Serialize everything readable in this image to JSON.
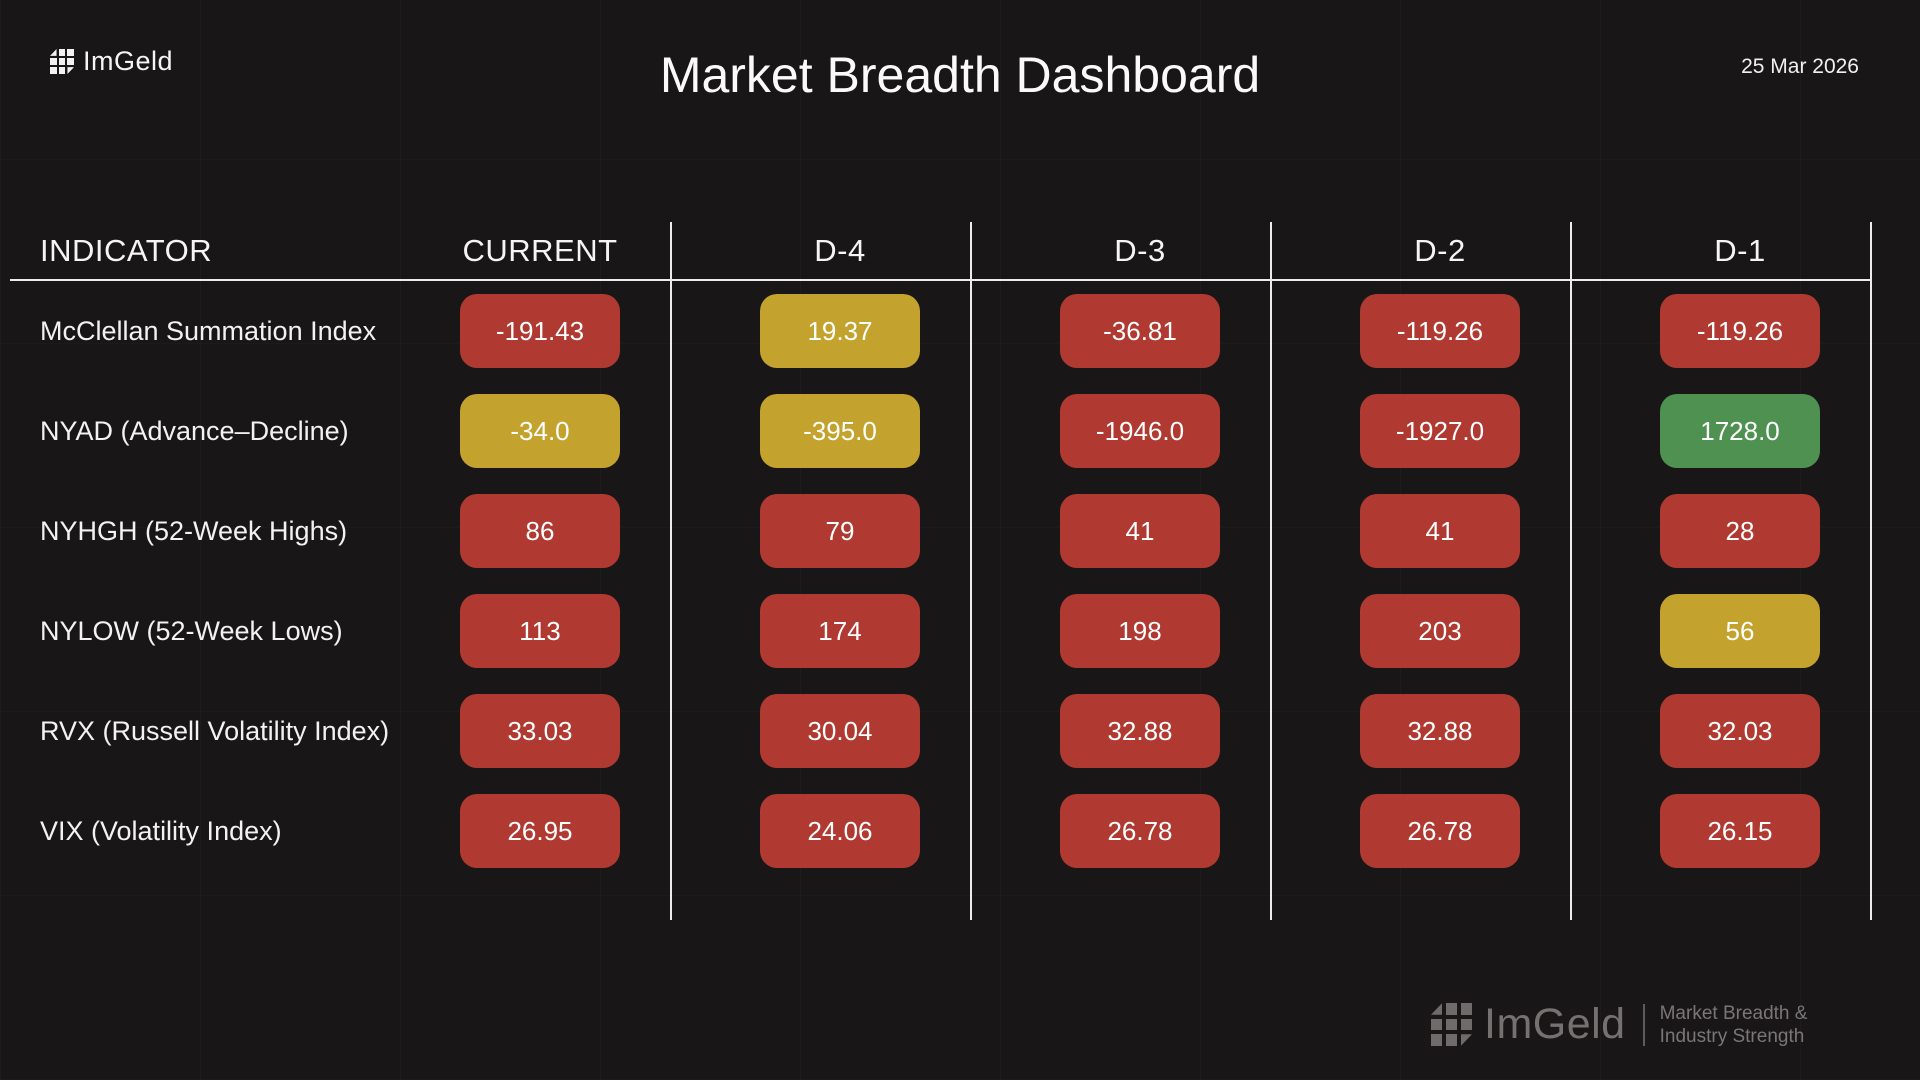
{
  "header": {
    "brand": "ImGeld",
    "title": "Market Breadth Dashboard",
    "date": "25 Mar 2026"
  },
  "chart_data": {
    "type": "table",
    "title": "Market Breadth Dashboard",
    "date": "25 Mar 2026",
    "columns": [
      "INDICATOR",
      "CURRENT",
      "D-4",
      "D-3",
      "D-2",
      "D-1"
    ],
    "rows": [
      {
        "indicator": "McClellan Summation Index",
        "values": [
          -191.43,
          19.37,
          -36.81,
          -119.26,
          -119.26
        ],
        "display": [
          "-191.43",
          "19.37",
          "-36.81",
          "-119.26",
          "-119.26"
        ],
        "status": [
          "red",
          "yellow",
          "red",
          "red",
          "red"
        ]
      },
      {
        "indicator": "NYAD (Advance–Decline)",
        "values": [
          -34.0,
          -395.0,
          -1946.0,
          -1927.0,
          1728.0
        ],
        "display": [
          "-34.0",
          "-395.0",
          "-1946.0",
          "-1927.0",
          "1728.0"
        ],
        "status": [
          "yellow",
          "yellow",
          "red",
          "red",
          "green"
        ]
      },
      {
        "indicator": "NYHGH (52-Week Highs)",
        "values": [
          86,
          79,
          41,
          41,
          28
        ],
        "display": [
          "86",
          "79",
          "41",
          "41",
          "28"
        ],
        "status": [
          "red",
          "red",
          "red",
          "red",
          "red"
        ]
      },
      {
        "indicator": "NYLOW (52-Week Lows)",
        "values": [
          113,
          174,
          198,
          203,
          56
        ],
        "display": [
          "113",
          "174",
          "198",
          "203",
          "56"
        ],
        "status": [
          "red",
          "red",
          "red",
          "red",
          "yellow"
        ]
      },
      {
        "indicator": "RVX (Russell Volatility Index)",
        "values": [
          33.03,
          30.04,
          32.88,
          32.88,
          32.03
        ],
        "display": [
          "33.03",
          "30.04",
          "32.88",
          "32.88",
          "32.03"
        ],
        "status": [
          "red",
          "red",
          "red",
          "red",
          "red"
        ]
      },
      {
        "indicator": "VIX (Volatility Index)",
        "values": [
          26.95,
          24.06,
          26.78,
          26.78,
          26.15
        ],
        "display": [
          "26.95",
          "24.06",
          "26.78",
          "26.78",
          "26.15"
        ],
        "status": [
          "red",
          "red",
          "red",
          "red",
          "red"
        ]
      }
    ],
    "status_colors": {
      "red": "#b03a31",
      "yellow": "#c4a22e",
      "green": "#4e9150"
    },
    "layout": {
      "grid": "subtle dark panel grid",
      "value_pill_shape": "rounded-rectangle"
    }
  },
  "footer": {
    "brand": "ImGeld",
    "tagline_line1": "Market Breadth &",
    "tagline_line2": "Industry Strength"
  }
}
